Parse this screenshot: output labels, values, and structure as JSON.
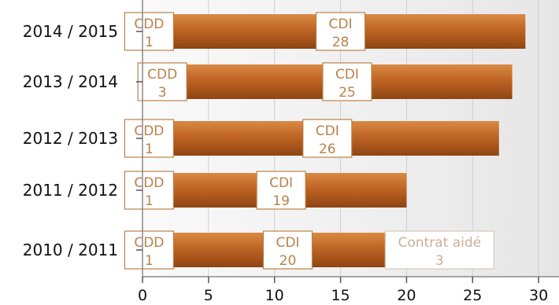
{
  "chart_data": {
    "type": "bar",
    "orientation": "horizontal",
    "stacked": true,
    "categories": [
      "2014 / 2015",
      "2013 / 2014",
      "2012 / 2013",
      "2011 / 2012",
      "2010 / 2011"
    ],
    "series": [
      {
        "name": "CDD",
        "values": [
          1,
          3,
          1,
          1,
          1
        ]
      },
      {
        "name": "CDI",
        "values": [
          28,
          25,
          26,
          19,
          20
        ]
      },
      {
        "name": "Contrat aidé",
        "values": [
          0,
          0,
          0,
          0,
          3
        ]
      }
    ],
    "xlim": [
      0,
      31
    ],
    "xticks": [
      0,
      5,
      10,
      15,
      20,
      25,
      30
    ],
    "grid": true,
    "bar_color": "#b95c1e",
    "label_color": "#b9814a",
    "label_color_muted": "#c9b09a"
  }
}
